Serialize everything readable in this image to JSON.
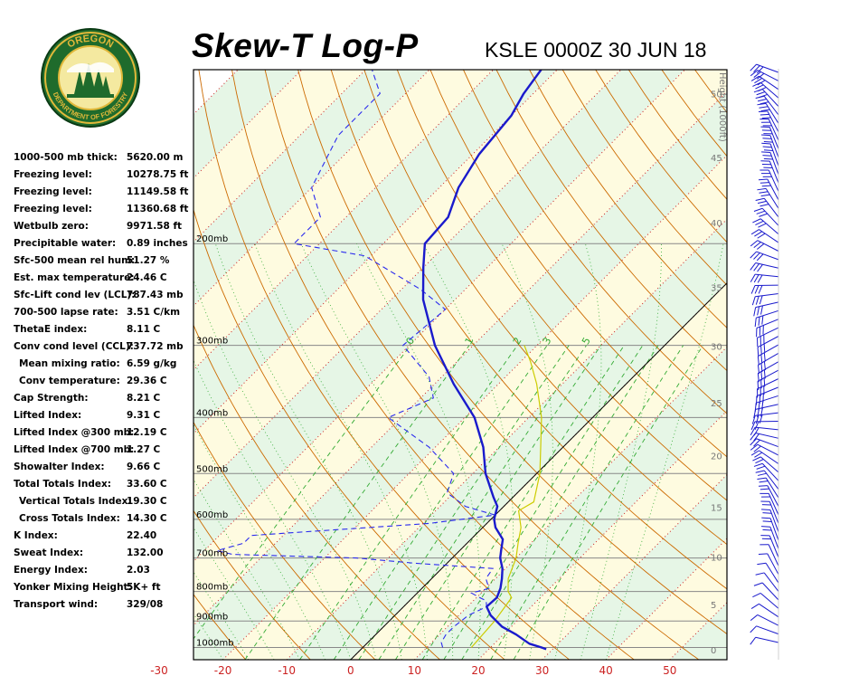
{
  "header": {
    "title": "Skew-T Log-P",
    "station_time": "KSLE 0000Z 30 JUN 18"
  },
  "logo": {
    "top_text": "OREGON",
    "bottom_text": "DEPARTMENT OF FORESTRY"
  },
  "stats": [
    {
      "label": "1000-500 mb thick:",
      "value": "5620.00 m"
    },
    {
      "label": "Freezing level:",
      "value": "10278.75 ft"
    },
    {
      "label": "Freezing level:",
      "value": "11149.58 ft"
    },
    {
      "label": "Freezing level:",
      "value": "11360.68 ft"
    },
    {
      "label": "Wetbulb zero:",
      "value": "9971.58 ft"
    },
    {
      "label": "Precipitable water:",
      "value": "0.89 inches"
    },
    {
      "label": "Sfc-500 mean rel hum:",
      "value": "51.27 %"
    },
    {
      "label": "Est. max temperature:",
      "value": "24.46 C"
    },
    {
      "label": "Sfc-Lift cond lev (LCL):",
      "value": "787.43 mb"
    },
    {
      "label": "700-500 lapse rate:",
      "value": "3.51 C/km"
    },
    {
      "label": "ThetaE index:",
      "value": "8.11 C"
    },
    {
      "label": "Conv cond level (CCL):",
      "value": "737.72 mb"
    },
    {
      "label": "Mean mixing ratio:",
      "value": "6.59 g/kg",
      "indent": true
    },
    {
      "label": "Conv temperature:",
      "value": "29.36 C",
      "indent": true
    },
    {
      "label": "Cap Strength:",
      "value": "8.21 C"
    },
    {
      "label": "Lifted Index:",
      "value": "9.31 C"
    },
    {
      "label": "Lifted Index @300 mb:",
      "value": "12.19 C"
    },
    {
      "label": "Lifted Index @700 mb:",
      "value": "1.27 C"
    },
    {
      "label": "Showalter Index:",
      "value": "9.66 C"
    },
    {
      "label": "Total Totals Index:",
      "value": "33.60 C"
    },
    {
      "label": "Vertical Totals Index:",
      "value": "19.30 C",
      "indent": true
    },
    {
      "label": "Cross Totals Index:",
      "value": "14.30 C",
      "indent": true
    },
    {
      "label": "K Index:",
      "value": "22.40"
    },
    {
      "label": "Sweat Index:",
      "value": "132.00"
    },
    {
      "label": "Energy Index:",
      "value": "2.03"
    },
    {
      "label": "Yonker Mixing Height:",
      "value": "5K+ ft"
    },
    {
      "label": "Transport wind:",
      "value": "329/08"
    }
  ],
  "colors": {
    "temperature": "#1a1acc",
    "dewpoint": "#2a2aee",
    "dry_adiabat": "#cc6a00",
    "moist_adiabat": "#33aa33",
    "mixing_ratio": "#33aa33",
    "isotherm": "#cc2222",
    "parcel": "#cccc00",
    "isobar": "#888888",
    "x_tick": "#cc2222",
    "band_yellow": "#fefbe0",
    "band_green": "#e6f6e6"
  },
  "chart_data": {
    "type": "line",
    "title": "Skew-T Log-P",
    "xlabel": "",
    "ylabel": "",
    "x_ticks": [
      "-30",
      "-20",
      "-10",
      "0",
      "10",
      "20",
      "30",
      "40",
      "50"
    ],
    "x_tick_values": [
      -30,
      -20,
      -10,
      0,
      10,
      20,
      30,
      40,
      50
    ],
    "isobar_labels": [
      {
        "p": 200,
        "label": "200mb"
      },
      {
        "p": 300,
        "label": "300mb"
      },
      {
        "p": 400,
        "label": "400mb"
      },
      {
        "p": 500,
        "label": "500mb"
      },
      {
        "p": 600,
        "label": "600mb"
      },
      {
        "p": 700,
        "label": "700mb"
      },
      {
        "p": 800,
        "label": "800mb"
      },
      {
        "p": 900,
        "label": "900mb"
      },
      {
        "p": 1000,
        "label": "1000mb"
      }
    ],
    "height_axis_label": "Height (1000ft)",
    "height_ticks": [
      {
        "p": 1010,
        "label": "0"
      },
      {
        "p": 843,
        "label": "5"
      },
      {
        "p": 697,
        "label": "10"
      },
      {
        "p": 572,
        "label": "15"
      },
      {
        "p": 466,
        "label": "20"
      },
      {
        "p": 377,
        "label": "25"
      },
      {
        "p": 301,
        "label": "30"
      },
      {
        "p": 238,
        "label": "35"
      },
      {
        "p": 184,
        "label": "40"
      },
      {
        "p": 142,
        "label": "45"
      },
      {
        "p": 110,
        "label": "50"
      }
    ],
    "mixing_ratio_labels": [
      "0",
      "1",
      "2",
      "3",
      "5"
    ],
    "mixing_ratio_values": [
      0.4,
      1,
      2,
      3,
      5
    ],
    "temperature_profile": [
      {
        "p": 1007,
        "t": 29.0
      },
      {
        "p": 1000,
        "t": 28.0
      },
      {
        "p": 985,
        "t": 25.5
      },
      {
        "p": 950,
        "t": 22.0
      },
      {
        "p": 920,
        "t": 18.5
      },
      {
        "p": 880,
        "t": 15.0
      },
      {
        "p": 850,
        "t": 13.0
      },
      {
        "p": 820,
        "t": 13.2
      },
      {
        "p": 790,
        "t": 12.3
      },
      {
        "p": 760,
        "t": 11.0
      },
      {
        "p": 730,
        "t": 9.5
      },
      {
        "p": 700,
        "t": 7.5
      },
      {
        "p": 680,
        "t": 6.5
      },
      {
        "p": 650,
        "t": 5.0
      },
      {
        "p": 620,
        "t": 2.0
      },
      {
        "p": 600,
        "t": 0.5
      },
      {
        "p": 570,
        "t": -1.0
      },
      {
        "p": 550,
        "t": -3.0
      },
      {
        "p": 500,
        "t": -8.0
      },
      {
        "p": 450,
        "t": -12.5
      },
      {
        "p": 400,
        "t": -18.5
      },
      {
        "p": 350,
        "t": -27.0
      },
      {
        "p": 300,
        "t": -36.0
      },
      {
        "p": 250,
        "t": -45.0
      },
      {
        "p": 220,
        "t": -50.0
      },
      {
        "p": 200,
        "t": -53.5
      },
      {
        "p": 180,
        "t": -54.0
      },
      {
        "p": 160,
        "t": -57.0
      },
      {
        "p": 140,
        "t": -59.0
      },
      {
        "p": 120,
        "t": -60.0
      },
      {
        "p": 110,
        "t": -61.5
      },
      {
        "p": 100,
        "t": -62.5
      }
    ],
    "dewpoint_profile": [
      {
        "p": 1000,
        "td": 12.5
      },
      {
        "p": 980,
        "td": 11.5
      },
      {
        "p": 950,
        "td": 11.0
      },
      {
        "p": 920,
        "td": 11.0
      },
      {
        "p": 880,
        "td": 11.5
      },
      {
        "p": 850,
        "td": 13.0
      },
      {
        "p": 830,
        "td": 12.0
      },
      {
        "p": 820,
        "td": 10.5
      },
      {
        "p": 805,
        "td": 8.5
      },
      {
        "p": 790,
        "td": 10.5
      },
      {
        "p": 760,
        "td": 8.5
      },
      {
        "p": 730,
        "td": 8.0
      },
      {
        "p": 715,
        "td": -5.0
      },
      {
        "p": 700,
        "td": -15.0
      },
      {
        "p": 690,
        "td": -35.0
      },
      {
        "p": 680,
        "td": -38.0
      },
      {
        "p": 660,
        "td": -35.0
      },
      {
        "p": 640,
        "td": -35.0
      },
      {
        "p": 610,
        "td": -9.0
      },
      {
        "p": 590,
        "td": 0.0
      },
      {
        "p": 570,
        "td": -6.0
      },
      {
        "p": 540,
        "td": -11.0
      },
      {
        "p": 500,
        "td": -13.0
      },
      {
        "p": 450,
        "td": -21.0
      },
      {
        "p": 400,
        "td": -32.0
      },
      {
        "p": 370,
        "td": -28.0
      },
      {
        "p": 340,
        "td": -32.0
      },
      {
        "p": 300,
        "td": -41.0
      },
      {
        "p": 260,
        "td": -40.0
      },
      {
        "p": 240,
        "td": -47.0
      },
      {
        "p": 210,
        "td": -61.0
      },
      {
        "p": 200,
        "td": -74.0
      },
      {
        "p": 180,
        "td": -74.0
      },
      {
        "p": 160,
        "td": -80.0
      },
      {
        "p": 130,
        "td": -84.0
      },
      {
        "p": 110,
        "td": -84.0
      },
      {
        "p": 100,
        "td": -89.0
      }
    ],
    "parcel_profile": [
      {
        "p": 1000,
        "t": 17.0
      },
      {
        "p": 900,
        "t": 16.5
      },
      {
        "p": 820,
        "t": 15.5
      },
      {
        "p": 800,
        "t": 14.0
      },
      {
        "p": 760,
        "t": 12.0
      },
      {
        "p": 700,
        "t": 10.0
      },
      {
        "p": 660,
        "t": 8.0
      },
      {
        "p": 620,
        "t": 6.0
      },
      {
        "p": 580,
        "t": 3.0
      },
      {
        "p": 560,
        "t": 4.0
      },
      {
        "p": 500,
        "t": 0.5
      },
      {
        "p": 450,
        "t": -3.5
      },
      {
        "p": 400,
        "t": -8.0
      },
      {
        "p": 350,
        "t": -14.0
      },
      {
        "p": 320,
        "t": -18.5
      },
      {
        "p": 300,
        "t": -22.0
      }
    ],
    "wind_barbs_count": 68
  }
}
